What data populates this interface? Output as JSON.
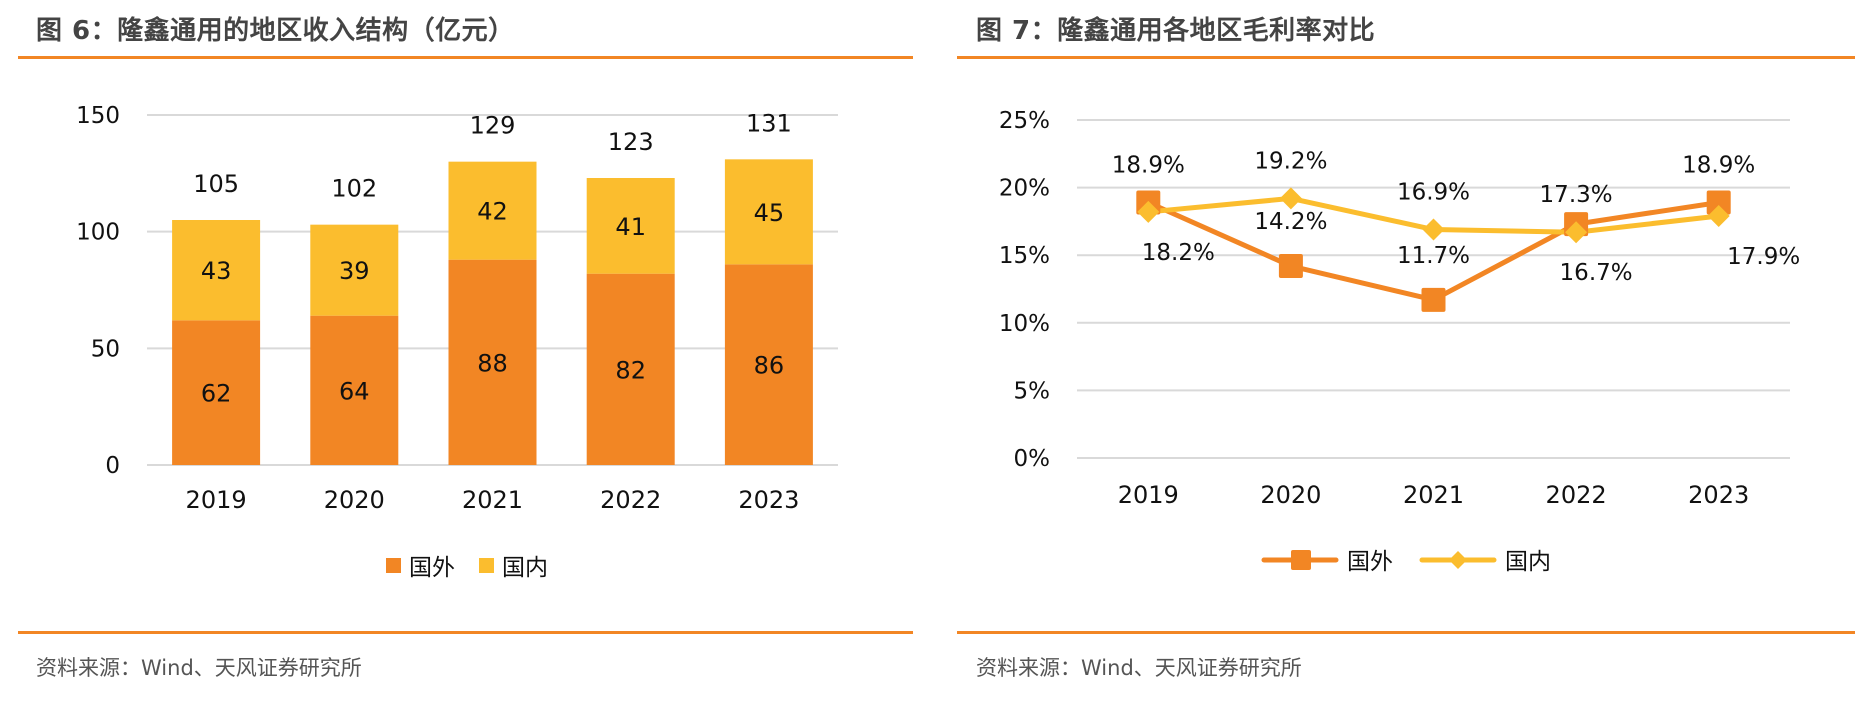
{
  "panels": [
    {
      "title": "图 6：隆鑫通用的地区收入结构（亿元）",
      "source": "资料来源：Wind、天风证券研究所"
    },
    {
      "title": "图 7：隆鑫通用各地区毛利率对比",
      "source": "资料来源：Wind、天风证券研究所"
    }
  ],
  "colors": {
    "accent_rule": "#f28624",
    "overseas": "#f28624",
    "domestic": "#fbbd2e",
    "grid": "#d9d9d9",
    "title_text": "#444444"
  },
  "chart_data": [
    {
      "type": "bar",
      "stacked": true,
      "title": "图 6：隆鑫通用的地区收入结构（亿元）",
      "xlabel": "",
      "ylabel": "",
      "categories": [
        "2019",
        "2020",
        "2021",
        "2022",
        "2023"
      ],
      "series": [
        {
          "name": "国外",
          "values": [
            62,
            64,
            88,
            82,
            86
          ],
          "labels": [
            "62",
            "64",
            "88",
            "82",
            "86"
          ]
        },
        {
          "name": "国内",
          "values": [
            43,
            39,
            42,
            41,
            45
          ],
          "labels": [
            "43",
            "39",
            "42",
            "41",
            "45"
          ]
        }
      ],
      "totals": [
        105,
        102,
        129,
        123,
        131
      ],
      "total_labels": [
        "105",
        "102",
        "129",
        "123",
        "131"
      ],
      "ylim": [
        0,
        150
      ],
      "yticks": [
        0,
        50,
        100,
        150
      ],
      "ytick_labels": [
        "0",
        "50",
        "100",
        "150"
      ],
      "grid": true,
      "legend": {
        "position": "bottom",
        "entries": [
          "国外",
          "国内"
        ]
      }
    },
    {
      "type": "line",
      "title": "图 7：隆鑫通用各地区毛利率对比",
      "xlabel": "",
      "ylabel": "",
      "categories": [
        "2019",
        "2020",
        "2021",
        "2022",
        "2023"
      ],
      "series": [
        {
          "name": "国外",
          "marker": "square",
          "values": [
            18.9,
            14.2,
            11.7,
            17.3,
            18.9
          ],
          "labels": [
            "18.9%",
            "14.2%",
            "11.7%",
            "17.3%",
            "18.9%"
          ]
        },
        {
          "name": "国内",
          "marker": "diamond",
          "values": [
            18.2,
            19.2,
            16.9,
            16.7,
            17.9
          ],
          "labels": [
            "18.2%",
            "19.2%",
            "16.9%",
            "16.7%",
            "17.9%"
          ]
        }
      ],
      "ylim": [
        0,
        25
      ],
      "yticks": [
        0,
        5,
        10,
        15,
        20,
        25
      ],
      "ytick_labels": [
        "0%",
        "5%",
        "10%",
        "15%",
        "20%",
        "25%"
      ],
      "grid": true,
      "legend": {
        "position": "bottom",
        "entries": [
          "国外",
          "国内"
        ]
      }
    }
  ]
}
